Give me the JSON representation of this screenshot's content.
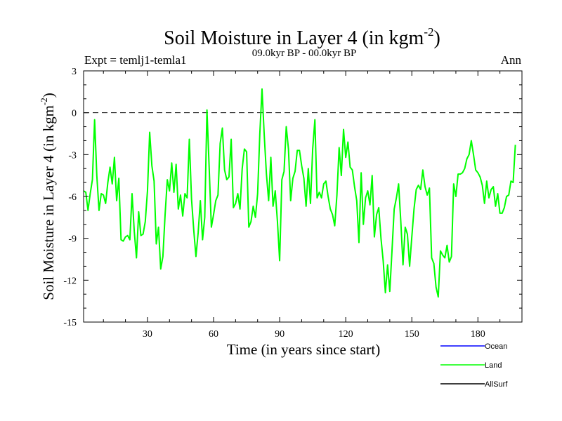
{
  "colors": {
    "land": "#00ff00",
    "ocean": "#0000ff",
    "allsurf": "#000000",
    "axis": "#000000",
    "zero_line": "#000000"
  },
  "chart_data": {
    "type": "line",
    "title_main": "Soil Moisture in Layer 4 (in kgm",
    "title_exp": "-2",
    "title_close": ")",
    "subtitle_left": "Expt = temlj1-temla1",
    "subtitle_center": "09.0kyr BP - 00.0kyr BP",
    "subtitle_right": "Ann",
    "xlabel": "Time (in years since start)",
    "ylabel_main": "Soil Moisture in Layer 4 (in kgm",
    "ylabel_exp": "-2",
    "ylabel_close": ")",
    "xlim": [
      1,
      200
    ],
    "ylim": [
      -15,
      3
    ],
    "xticks": [
      30,
      60,
      90,
      120,
      150,
      180
    ],
    "yticks": [
      -15,
      -12,
      -9,
      -6,
      -3,
      0,
      3
    ],
    "reference_line": 0,
    "legend": [
      "Ocean",
      "Land",
      "AllSurf"
    ],
    "series": [
      {
        "name": "Ocean",
        "values": []
      },
      {
        "name": "Land",
        "values": [
          -5.6,
          -5.7,
          -7.0,
          -5.8,
          -4.8,
          -0.5,
          -4.5,
          -7.0,
          -5.8,
          -5.9,
          -6.5,
          -5.0,
          -3.9,
          -5.1,
          -3.2,
          -6.3,
          -4.7,
          -9.1,
          -9.2,
          -8.9,
          -8.8,
          -9.1,
          -5.8,
          -8.5,
          -10.4,
          -7.1,
          -8.8,
          -8.7,
          -7.8,
          -5.6,
          -1.4,
          -3.8,
          -4.9,
          -9.4,
          -8.2,
          -11.2,
          -10.3,
          -7.3,
          -4.8,
          -5.6,
          -3.6,
          -5.7,
          -3.7,
          -6.9,
          -5.9,
          -7.4,
          -5.8,
          -6.1,
          -1.9,
          -6.2,
          -8.4,
          -10.3,
          -8.6,
          -6.3,
          -9.1,
          -7.5,
          0.2,
          -3.9,
          -8.2,
          -7.3,
          -6.3,
          -5.9,
          -2.2,
          -1.1,
          -4.1,
          -4.8,
          -4.6,
          -1.9,
          -6.8,
          -6.5,
          -5.8,
          -6.9,
          -4.0,
          -2.6,
          -2.8,
          -8.2,
          -7.8,
          -6.7,
          -7.5,
          -5.8,
          -1.5,
          1.7,
          -1.6,
          -4.4,
          -6.3,
          -3.2,
          -6.7,
          -5.6,
          -7.8,
          -10.6,
          -4.8,
          -4.2,
          -1.0,
          -2.6,
          -6.3,
          -4.7,
          -4.2,
          -2.7,
          -2.7,
          -3.8,
          -4.7,
          -6.7,
          -4.0,
          -6.5,
          -2.6,
          -0.5,
          -6.1,
          -5.7,
          -6.1,
          -5.1,
          -4.9,
          -6.0,
          -6.9,
          -7.3,
          -8.1,
          -5.9,
          -2.5,
          -4.5,
          -1.2,
          -3.2,
          -2.1,
          -3.9,
          -4.1,
          -5.3,
          -6.3,
          -9.3,
          -4.3,
          -8.0,
          -6.1,
          -5.6,
          -6.6,
          -4.5,
          -8.9,
          -7.3,
          -6.8,
          -9.0,
          -10.6,
          -12.9,
          -10.9,
          -12.8,
          -9.9,
          -6.9,
          -6.1,
          -5.1,
          -7.8,
          -10.9,
          -8.2,
          -8.7,
          -11.0,
          -8.9,
          -6.9,
          -5.5,
          -5.2,
          -5.5,
          -4.1,
          -5.3,
          -5.9,
          -5.4,
          -10.4,
          -10.8,
          -12.5,
          -13.2,
          -9.9,
          -10.2,
          -10.4,
          -9.5,
          -10.7,
          -10.3,
          -5.1,
          -6.0,
          -4.4,
          -4.4,
          -4.3,
          -4.0,
          -3.3,
          -3.0,
          -2.0,
          -3.0,
          -4.1,
          -4.3,
          -4.6,
          -5.2,
          -6.5,
          -4.9,
          -6.1,
          -5.5,
          -5.3,
          -6.7,
          -5.8,
          -7.2,
          -7.2,
          -6.8,
          -6.0,
          -5.9,
          -4.9,
          -5.0,
          -2.3
        ]
      },
      {
        "name": "AllSurf",
        "values": []
      }
    ]
  }
}
